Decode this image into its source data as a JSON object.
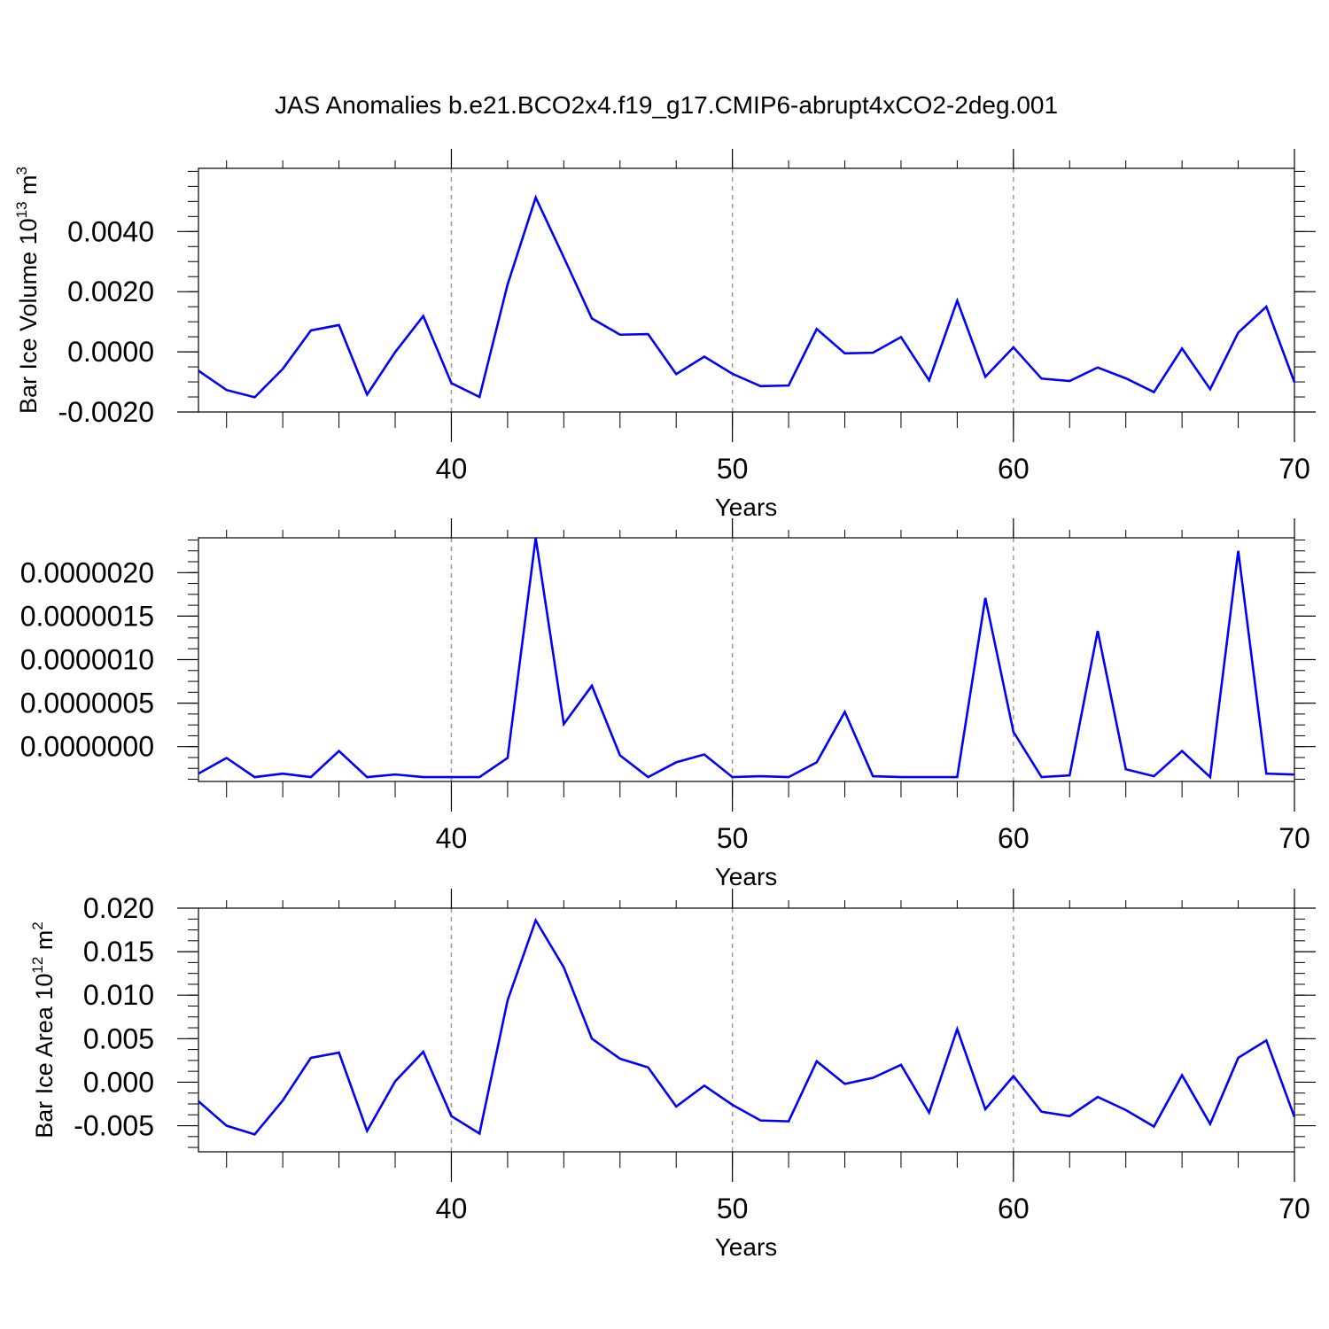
{
  "title": "JAS Anomalies b.e21.BCO2x4.f19_g17.CMIP6-abrupt4xCO2-2deg.001",
  "colors": {
    "line": "#0000ff",
    "axis": "#000000",
    "grid": "#999999"
  },
  "chart_data": [
    {
      "type": "line",
      "xlabel": "Years",
      "ylabel": "Bar Ice Volume 10",
      "ylabel_exp": "13",
      "ylabel_unit": " m",
      "ylabel_unit_exp": "3",
      "xlim": [
        31,
        70
      ],
      "ylim": [
        -0.002,
        0.0061
      ],
      "xticks": [
        40,
        50,
        60,
        70
      ],
      "xtick_labels": [
        "40",
        "50",
        "60",
        "70"
      ],
      "yticks": [
        -0.002,
        0.0,
        0.002,
        0.004
      ],
      "ytick_labels": [
        "-0.0020",
        "0.0000",
        "0.0020",
        "0.0040"
      ],
      "grid_x": [
        40,
        50,
        60
      ],
      "x": [
        31,
        32,
        33,
        34,
        35,
        36,
        37,
        38,
        39,
        40,
        41,
        42,
        43,
        44,
        45,
        46,
        47,
        48,
        49,
        50,
        51,
        52,
        53,
        54,
        55,
        56,
        57,
        58,
        59,
        60,
        61,
        62,
        63,
        64,
        65,
        66,
        67,
        68,
        69,
        70
      ],
      "series": [
        {
          "values": [
            -0.00063,
            -0.00127,
            -0.00151,
            -0.00057,
            0.00071,
            0.00089,
            -0.00142,
            -1e-05,
            0.00119,
            -0.00104,
            -0.0015,
            0.00224,
            0.00513,
            0.00314,
            0.00111,
            0.00057,
            0.00059,
            -0.00074,
            -0.00016,
            -0.00073,
            -0.00114,
            -0.00112,
            0.00076,
            -5e-05,
            -3e-05,
            0.00049,
            -0.00095,
            0.0017,
            -0.00083,
            0.00015,
            -0.00089,
            -0.00097,
            -0.00052,
            -0.00088,
            -0.00134,
            0.00011,
            -0.00124,
            0.00064,
            0.0015,
            -0.00101
          ]
        }
      ]
    },
    {
      "type": "line",
      "xlabel": "Years",
      "ylabel": "",
      "xlim": [
        31,
        70
      ],
      "ylim": [
        -4e-07,
        2.4e-06
      ],
      "xticks": [
        40,
        50,
        60,
        70
      ],
      "xtick_labels": [
        "40",
        "50",
        "60",
        "70"
      ],
      "yticks": [
        0.0,
        5e-07,
        1e-06,
        1.5e-06,
        2e-06
      ],
      "ytick_labels": [
        "0.0000000",
        "0.0000005",
        "0.0000010",
        "0.0000015",
        "0.0000020"
      ],
      "grid_x": [
        40,
        50,
        60
      ],
      "x": [
        31,
        32,
        33,
        34,
        35,
        36,
        37,
        38,
        39,
        40,
        41,
        42,
        43,
        44,
        45,
        46,
        47,
        48,
        49,
        50,
        51,
        52,
        53,
        54,
        55,
        56,
        57,
        58,
        59,
        60,
        61,
        62,
        63,
        64,
        65,
        66,
        67,
        68,
        69,
        70
      ],
      "series": [
        {
          "values": [
            -3.1e-07,
            -1.3e-07,
            -3.5e-07,
            -3.1e-07,
            -3.5e-07,
            -5e-08,
            -3.5e-07,
            -3.2e-07,
            -3.5e-07,
            -3.5e-07,
            -3.5e-07,
            -1.3e-07,
            2.4e-06,
            2.6e-07,
            7e-07,
            -1e-07,
            -3.5e-07,
            -1.8e-07,
            -9e-08,
            -3.5e-07,
            -3.4e-07,
            -3.5e-07,
            -1.8e-07,
            4e-07,
            -3.4e-07,
            -3.5e-07,
            -3.5e-07,
            -3.5e-07,
            1.71e-06,
            1.7e-07,
            -3.5e-07,
            -3.3e-07,
            1.33e-06,
            -2.6e-07,
            -3.4e-07,
            -5e-08,
            -3.5e-07,
            2.25e-06,
            -3.1e-07,
            -3.2e-07
          ]
        }
      ]
    },
    {
      "type": "line",
      "xlabel": "Years",
      "ylabel": "Bar Ice Area 10",
      "ylabel_exp": "12",
      "ylabel_unit": " m",
      "ylabel_unit_exp": "2",
      "xlim": [
        31,
        70
      ],
      "ylim": [
        -0.008,
        0.02
      ],
      "xticks": [
        40,
        50,
        60,
        70
      ],
      "xtick_labels": [
        "40",
        "50",
        "60",
        "70"
      ],
      "yticks": [
        -0.005,
        0.0,
        0.005,
        0.01,
        0.015,
        0.02
      ],
      "ytick_labels": [
        "-0.005",
        "0.000",
        "0.005",
        "0.010",
        "0.015",
        "0.020"
      ],
      "grid_x": [
        40,
        50,
        60
      ],
      "x": [
        31,
        32,
        33,
        34,
        35,
        36,
        37,
        38,
        39,
        40,
        41,
        42,
        43,
        44,
        45,
        46,
        47,
        48,
        49,
        50,
        51,
        52,
        53,
        54,
        55,
        56,
        57,
        58,
        59,
        60,
        61,
        62,
        63,
        64,
        65,
        66,
        67,
        68,
        69,
        70
      ],
      "series": [
        {
          "values": [
            -0.0022,
            -0.005,
            -0.006,
            -0.0021,
            0.0028,
            0.0034,
            -0.0056,
            0.0001,
            0.0035,
            -0.0039,
            -0.0059,
            0.0094,
            0.0186,
            0.0132,
            0.005,
            0.0027,
            0.0017,
            -0.0028,
            -0.0004,
            -0.0026,
            -0.0044,
            -0.0045,
            0.0024,
            -0.0002,
            0.0005,
            0.002,
            -0.0035,
            0.0061,
            -0.0031,
            0.0007,
            -0.0034,
            -0.0039,
            -0.0017,
            -0.0032,
            -0.0051,
            0.0008,
            -0.0048,
            0.0028,
            0.0048,
            -0.004
          ]
        }
      ]
    }
  ]
}
